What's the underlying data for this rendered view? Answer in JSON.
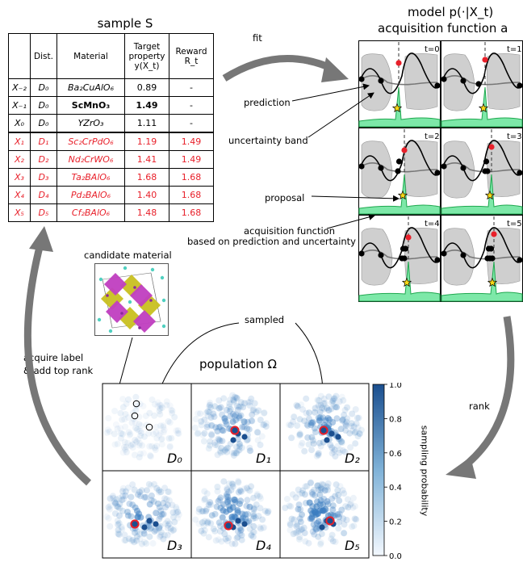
{
  "sample": {
    "title": "sample S",
    "headers": [
      "",
      "Dist.",
      "Material",
      "Target property y(X_t)",
      "Reward R_t"
    ],
    "rows": [
      {
        "x": "X₋₂",
        "dist": "D₀",
        "material": "Ba₂CuAlO₆",
        "target": "0.89",
        "reward": "-",
        "highlight": false,
        "bold": false
      },
      {
        "x": "X₋₁",
        "dist": "D₀",
        "material": "ScMnO₃",
        "target": "1.49",
        "reward": "-",
        "highlight": false,
        "bold": true
      },
      {
        "x": "X₀",
        "dist": "D₀",
        "material": "YZrO₃",
        "target": "1.11",
        "reward": "-",
        "highlight": false,
        "bold": false
      },
      {
        "x": "X₁",
        "dist": "D₁",
        "material": "Sc₂CrPdO₆",
        "target": "1.19",
        "reward": "1.49",
        "highlight": true,
        "bold": false
      },
      {
        "x": "X₂",
        "dist": "D₂",
        "material": "Nd₂CrWO₆",
        "target": "1.41",
        "reward": "1.49",
        "highlight": true,
        "bold": false
      },
      {
        "x": "X₃",
        "dist": "D₃",
        "material": "Ta₂BAlO₆",
        "target": "1.68",
        "reward": "1.68",
        "highlight": true,
        "bold": false
      },
      {
        "x": "X₄",
        "dist": "D₄",
        "material": "Pd₂BAlO₆",
        "target": "1.40",
        "reward": "1.68",
        "highlight": true,
        "bold": false
      },
      {
        "x": "X₅",
        "dist": "D₅",
        "material": "Cf₂BAlO₆",
        "target": "1.48",
        "reward": "1.68",
        "highlight": true,
        "bold": false
      }
    ]
  },
  "model": {
    "title_line1": "model p(·|X_t)",
    "title_line2": "acquisition function a",
    "steps": [
      "t=0",
      "t=1",
      "t=2",
      "t=3",
      "t=4",
      "t=5"
    ]
  },
  "labels": {
    "fit": "fit",
    "prediction": "prediction",
    "uncertainty_band": "uncertainty band",
    "proposal": "proposal",
    "acq_line1": "acquisition function",
    "acq_line2": "based on prediction and uncertainty",
    "candidate": "candidate material",
    "sampled": "sampled",
    "acquire_line1": "acquire label",
    "acquire_line2": "& add top rank",
    "rank": "rank"
  },
  "population": {
    "title": "population Ω",
    "panels": [
      "D₀",
      "D₁",
      "D₂",
      "D₃",
      "D₄",
      "D₅"
    ]
  },
  "colorbar": {
    "label": "sampling probability",
    "ticks": [
      "1.0",
      "0.8",
      "0.6",
      "0.4",
      "0.2",
      "0.0"
    ],
    "color_low": "#f3f8fe",
    "color_high": "#1b4f8f"
  },
  "colors": {
    "red": "#e8202a",
    "green": "#2ecc71",
    "arrow_gray": "#777777",
    "band_gray": "#cfcfcf"
  }
}
